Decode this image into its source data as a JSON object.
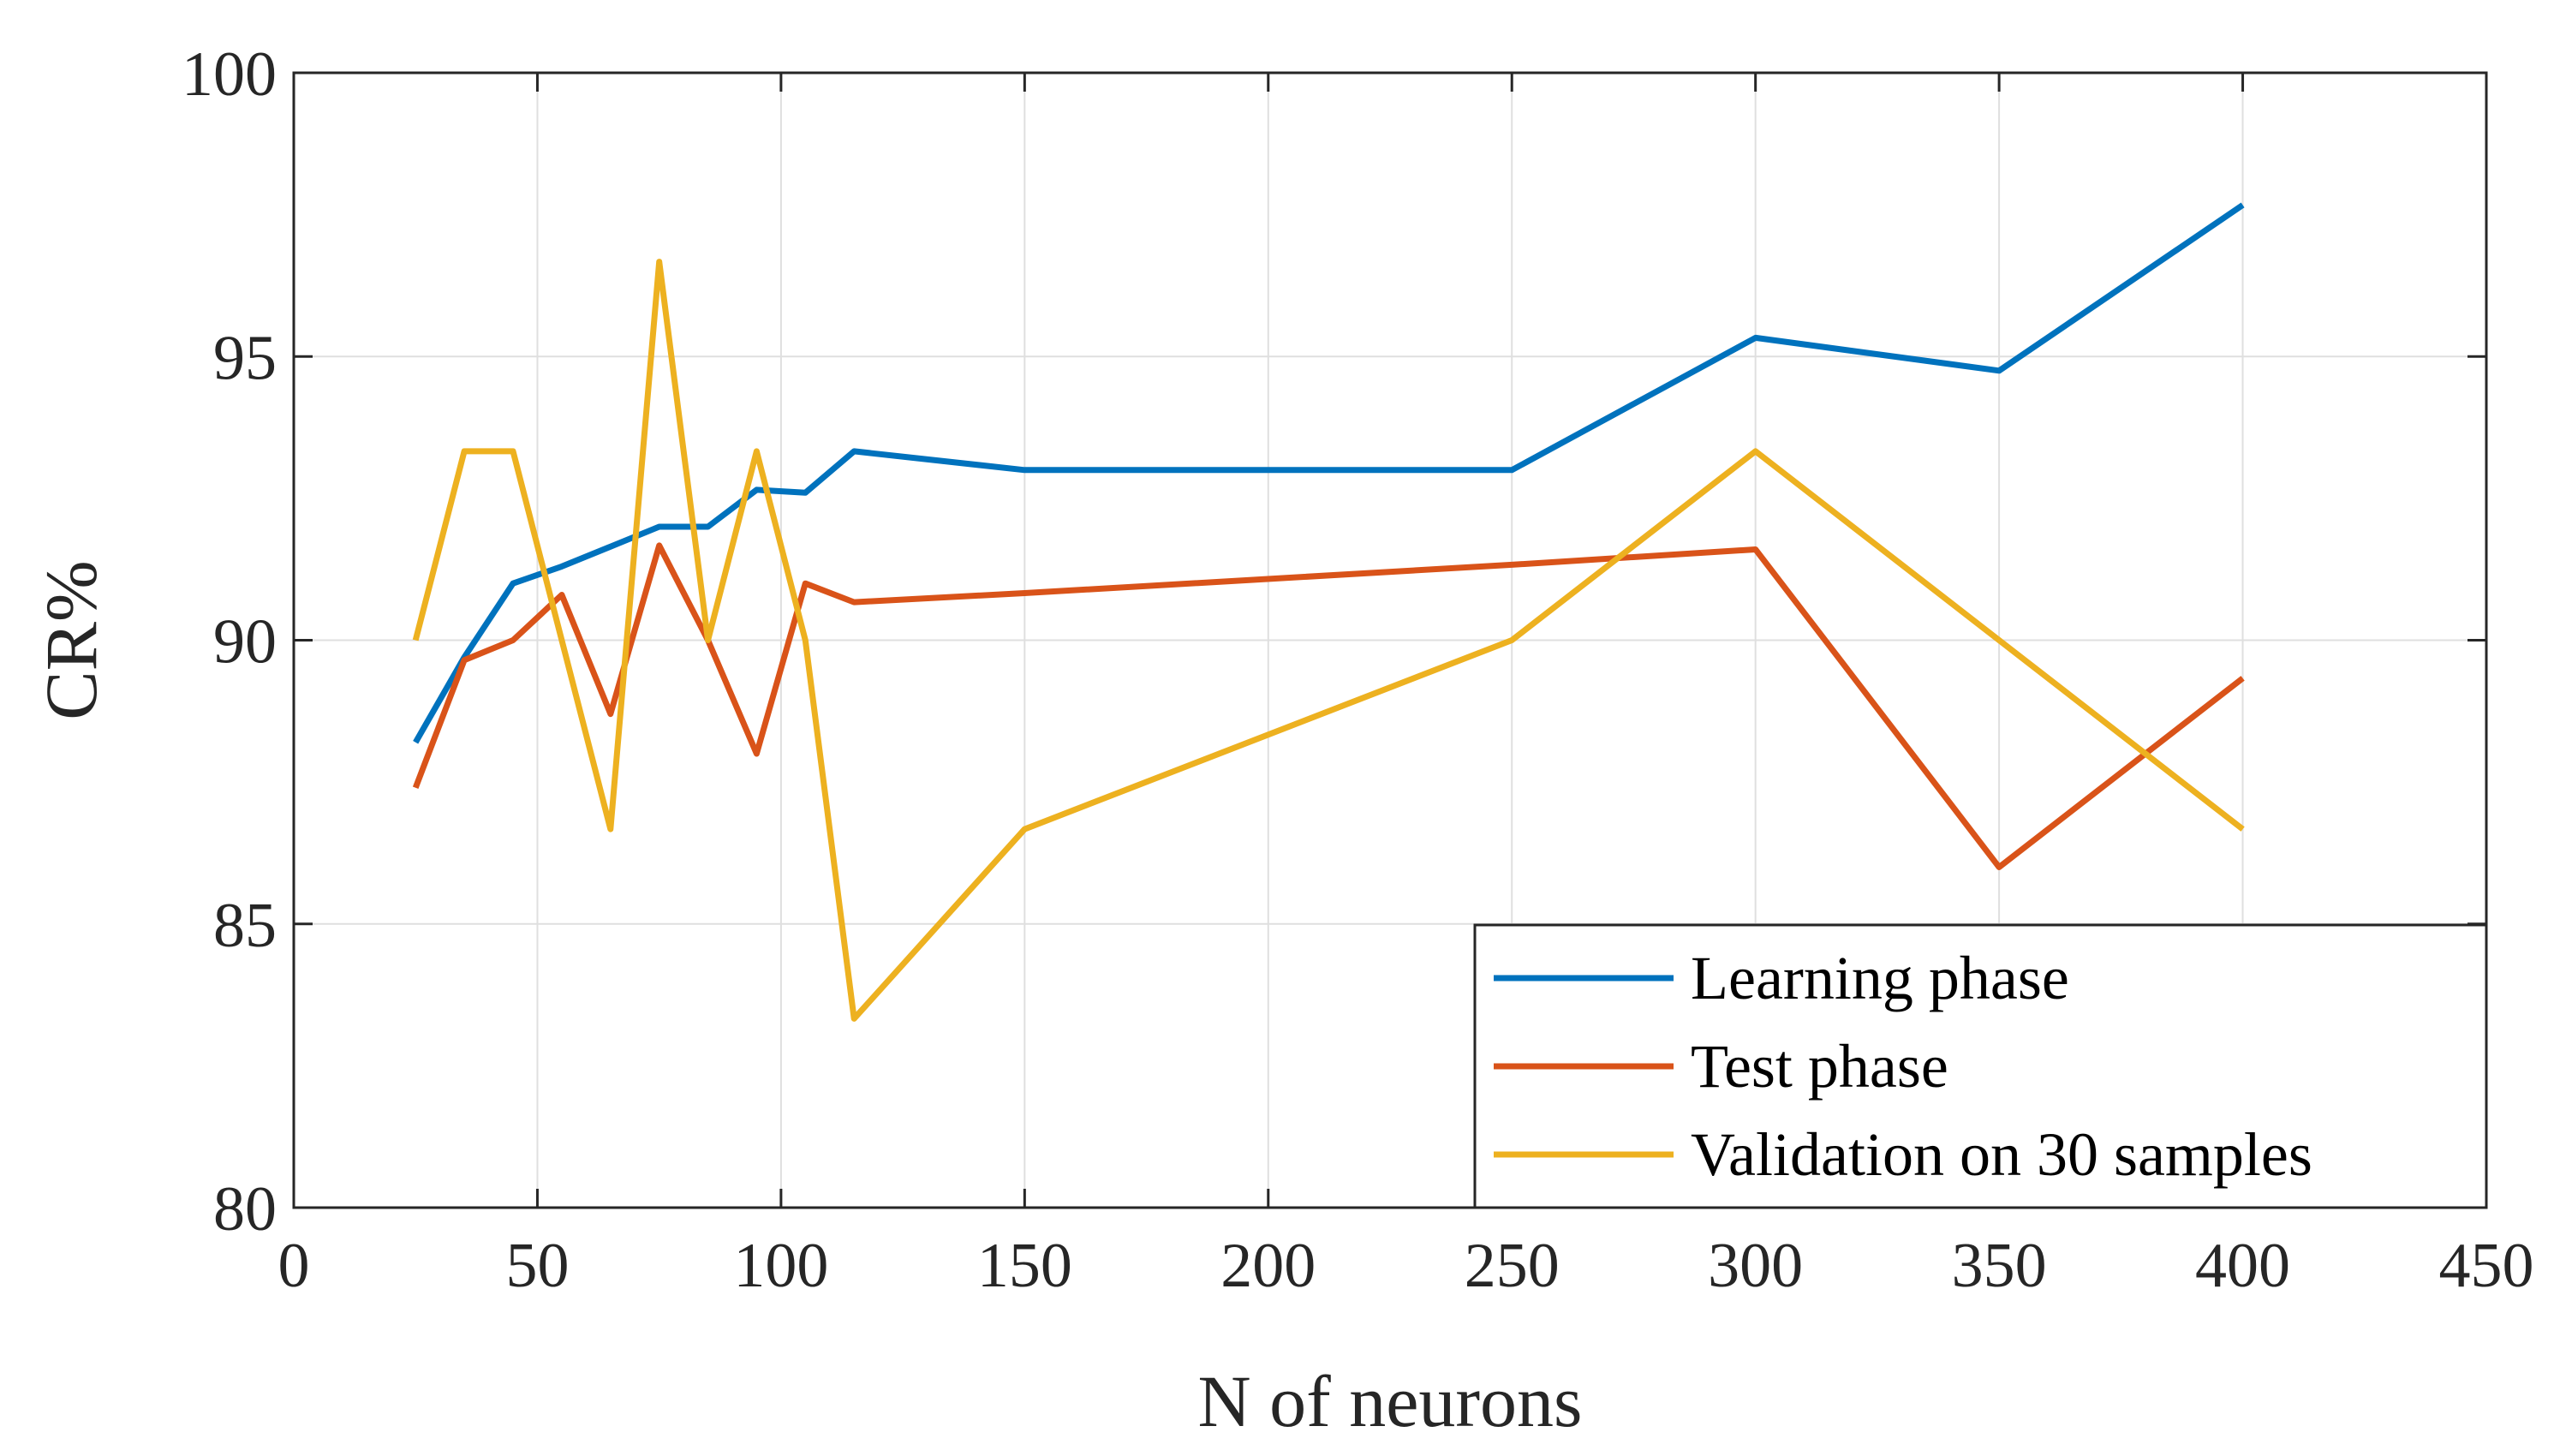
{
  "chart_data": {
    "type": "line",
    "title": "",
    "xlabel": "N of neurons",
    "ylabel": "CR%",
    "xlim": [
      0,
      450
    ],
    "ylim": [
      80,
      100
    ],
    "xticks": [
      0,
      50,
      100,
      150,
      200,
      250,
      300,
      350,
      400,
      450
    ],
    "yticks": [
      80,
      85,
      90,
      95,
      100
    ],
    "grid": true,
    "legend_position": "bottom-right",
    "series": [
      {
        "name": "Learning phase",
        "color": "#0072BD",
        "x": [
          25,
          35,
          45,
          55,
          65,
          75,
          85,
          95,
          105,
          115,
          150,
          250,
          300,
          350,
          400
        ],
        "y": [
          88.2,
          89.7,
          91.0,
          91.3,
          91.65,
          92.0,
          92.0,
          92.65,
          92.6,
          93.33,
          93.0,
          93.0,
          95.33,
          94.75,
          97.67
        ]
      },
      {
        "name": "Test phase",
        "color": "#D95319",
        "x": [
          25,
          35,
          45,
          55,
          65,
          75,
          85,
          95,
          105,
          115,
          150,
          250,
          300,
          350,
          400
        ],
        "y": [
          87.4,
          89.65,
          90.0,
          90.8,
          88.7,
          91.67,
          90.0,
          88.0,
          91.0,
          90.67,
          90.83,
          91.33,
          91.6,
          86.0,
          89.33
        ]
      },
      {
        "name": "Validation on 30 samples",
        "color": "#EDB120",
        "x": [
          25,
          35,
          45,
          55,
          65,
          75,
          85,
          95,
          105,
          115,
          150,
          250,
          300,
          350,
          400
        ],
        "y": [
          90.0,
          93.33,
          93.33,
          90.0,
          86.67,
          96.67,
          90.0,
          93.33,
          90.0,
          83.33,
          86.67,
          90.0,
          93.33,
          90.0,
          86.67
        ]
      }
    ]
  }
}
